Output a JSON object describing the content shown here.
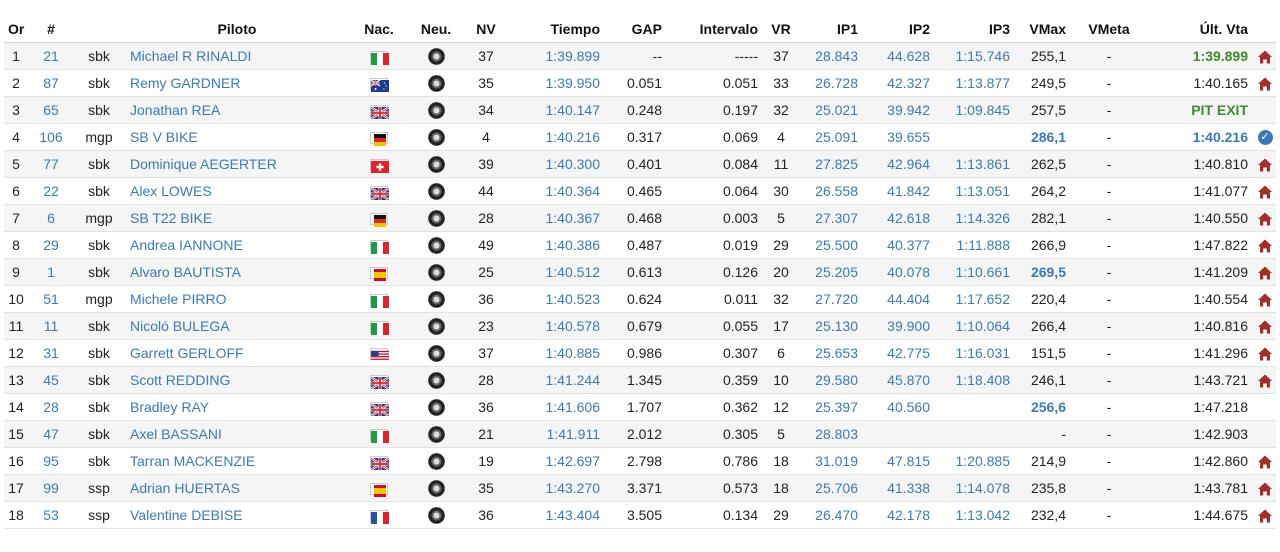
{
  "headers": {
    "or": "Or",
    "num": "#",
    "piloto": "Piloto",
    "nac": "Nac.",
    "neu": "Neu.",
    "nv": "NV",
    "tiempo": "Tiempo",
    "gap": "GAP",
    "intervalo": "Intervalo",
    "vr": "VR",
    "ip1": "IP1",
    "ip2": "IP2",
    "ip3": "IP3",
    "vmax": "VMax",
    "vmeta": "VMeta",
    "ultvta": "Últ. Vta"
  },
  "rows": [
    {
      "or": "1",
      "num": "21",
      "cat": "sbk",
      "piloto": "Michael R RINALDI",
      "flag": "ita",
      "nv": "37",
      "tiempo": "1:39.899",
      "gap": "--",
      "intervalo": "-----",
      "vr": "37",
      "ip1": "28.843",
      "ip2": "44.628",
      "ip3": "1:15.746",
      "vmax": "255,1",
      "vmeta": "-",
      "ultvta": "1:39.899",
      "ultvta_style": "green",
      "vmax_style": "",
      "icon": "home"
    },
    {
      "or": "2",
      "num": "87",
      "cat": "sbk",
      "piloto": "Remy GARDNER",
      "flag": "aus",
      "nv": "35",
      "tiempo": "1:39.950",
      "gap": "0.051",
      "intervalo": "0.051",
      "vr": "33",
      "ip1": "26.728",
      "ip2": "42.327",
      "ip3": "1:13.877",
      "vmax": "249,5",
      "vmeta": "-",
      "ultvta": "1:40.165",
      "ultvta_style": "",
      "vmax_style": "",
      "icon": "home"
    },
    {
      "or": "3",
      "num": "65",
      "cat": "sbk",
      "piloto": "Jonathan REA",
      "flag": "gbr",
      "nv": "34",
      "tiempo": "1:40.147",
      "gap": "0.248",
      "intervalo": "0.197",
      "vr": "32",
      "ip1": "25.021",
      "ip2": "39.942",
      "ip3": "1:09.845",
      "vmax": "257,5",
      "vmeta": "-",
      "ultvta": "PIT EXIT",
      "ultvta_style": "pit",
      "vmax_style": "",
      "icon": ""
    },
    {
      "or": "4",
      "num": "106",
      "cat": "mgp",
      "piloto": "SB V BIKE",
      "flag": "ger",
      "nv": "4",
      "tiempo": "1:40.216",
      "gap": "0.317",
      "intervalo": "0.069",
      "vr": "4",
      "ip1": "25.091",
      "ip2": "39.655",
      "ip3": "",
      "vmax": "286,1",
      "vmeta": "-",
      "ultvta": "1:40.216",
      "ultvta_style": "bluebold",
      "vmax_style": "bluebold",
      "icon": "check"
    },
    {
      "or": "5",
      "num": "77",
      "cat": "sbk",
      "piloto": "Dominique AEGERTER",
      "flag": "sui",
      "nv": "39",
      "tiempo": "1:40.300",
      "gap": "0.401",
      "intervalo": "0.084",
      "vr": "11",
      "ip1": "27.825",
      "ip2": "42.964",
      "ip3": "1:13.861",
      "vmax": "262,5",
      "vmeta": "-",
      "ultvta": "1:40.810",
      "ultvta_style": "",
      "vmax_style": "",
      "icon": "home"
    },
    {
      "or": "6",
      "num": "22",
      "cat": "sbk",
      "piloto": "Alex LOWES",
      "flag": "gbr",
      "nv": "44",
      "tiempo": "1:40.364",
      "gap": "0.465",
      "intervalo": "0.064",
      "vr": "30",
      "ip1": "26.558",
      "ip2": "41.842",
      "ip3": "1:13.051",
      "vmax": "264,2",
      "vmeta": "-",
      "ultvta": "1:41.077",
      "ultvta_style": "",
      "vmax_style": "",
      "icon": "home"
    },
    {
      "or": "7",
      "num": "6",
      "cat": "mgp",
      "piloto": "SB T22 BIKE",
      "flag": "ger",
      "nv": "28",
      "tiempo": "1:40.367",
      "gap": "0.468",
      "intervalo": "0.003",
      "vr": "5",
      "ip1": "27.307",
      "ip2": "42.618",
      "ip3": "1:14.326",
      "vmax": "282,1",
      "vmeta": "-",
      "ultvta": "1:40.550",
      "ultvta_style": "",
      "vmax_style": "",
      "icon": "home"
    },
    {
      "or": "8",
      "num": "29",
      "cat": "sbk",
      "piloto": "Andrea IANNONE",
      "flag": "ita",
      "nv": "49",
      "tiempo": "1:40.386",
      "gap": "0.487",
      "intervalo": "0.019",
      "vr": "29",
      "ip1": "25.500",
      "ip2": "40.377",
      "ip3": "1:11.888",
      "vmax": "266,9",
      "vmeta": "-",
      "ultvta": "1:47.822",
      "ultvta_style": "",
      "vmax_style": "",
      "icon": "home"
    },
    {
      "or": "9",
      "num": "1",
      "cat": "sbk",
      "piloto": "Alvaro BAUTISTA",
      "flag": "esp",
      "nv": "25",
      "tiempo": "1:40.512",
      "gap": "0.613",
      "intervalo": "0.126",
      "vr": "20",
      "ip1": "25.205",
      "ip2": "40.078",
      "ip3": "1:10.661",
      "vmax": "269,5",
      "vmeta": "-",
      "ultvta": "1:41.209",
      "ultvta_style": "",
      "vmax_style": "bluebold",
      "icon": "home"
    },
    {
      "or": "10",
      "num": "51",
      "cat": "mgp",
      "piloto": "Michele PIRRO",
      "flag": "ita",
      "nv": "36",
      "tiempo": "1:40.523",
      "gap": "0.624",
      "intervalo": "0.011",
      "vr": "32",
      "ip1": "27.720",
      "ip2": "44.404",
      "ip3": "1:17.652",
      "vmax": "220,4",
      "vmeta": "-",
      "ultvta": "1:40.554",
      "ultvta_style": "",
      "vmax_style": "",
      "icon": "home"
    },
    {
      "or": "11",
      "num": "11",
      "cat": "sbk",
      "piloto": "Nicoló BULEGA",
      "flag": "ita",
      "nv": "23",
      "tiempo": "1:40.578",
      "gap": "0.679",
      "intervalo": "0.055",
      "vr": "17",
      "ip1": "25.130",
      "ip2": "39.900",
      "ip3": "1:10.064",
      "vmax": "266,4",
      "vmeta": "-",
      "ultvta": "1:40.816",
      "ultvta_style": "",
      "vmax_style": "",
      "icon": "home"
    },
    {
      "or": "12",
      "num": "31",
      "cat": "sbk",
      "piloto": "Garrett GERLOFF",
      "flag": "usa",
      "nv": "37",
      "tiempo": "1:40.885",
      "gap": "0.986",
      "intervalo": "0.307",
      "vr": "6",
      "ip1": "25.653",
      "ip2": "42.775",
      "ip3": "1:16.031",
      "vmax": "151,5",
      "vmeta": "-",
      "ultvta": "1:41.296",
      "ultvta_style": "",
      "vmax_style": "",
      "icon": "home"
    },
    {
      "or": "13",
      "num": "45",
      "cat": "sbk",
      "piloto": "Scott REDDING",
      "flag": "gbr",
      "nv": "28",
      "tiempo": "1:41.244",
      "gap": "1.345",
      "intervalo": "0.359",
      "vr": "10",
      "ip1": "29.580",
      "ip2": "45.870",
      "ip3": "1:18.408",
      "vmax": "246,1",
      "vmeta": "-",
      "ultvta": "1:43.721",
      "ultvta_style": "",
      "vmax_style": "",
      "icon": "home"
    },
    {
      "or": "14",
      "num": "28",
      "cat": "sbk",
      "piloto": "Bradley RAY",
      "flag": "gbr",
      "nv": "36",
      "tiempo": "1:41.606",
      "gap": "1.707",
      "intervalo": "0.362",
      "vr": "12",
      "ip1": "25.397",
      "ip2": "40.560",
      "ip3": "",
      "vmax": "256,6",
      "vmeta": "-",
      "ultvta": "1:47.218",
      "ultvta_style": "",
      "vmax_style": "bluebold",
      "icon": ""
    },
    {
      "or": "15",
      "num": "47",
      "cat": "sbk",
      "piloto": "Axel BASSANI",
      "flag": "ita",
      "nv": "21",
      "tiempo": "1:41.911",
      "gap": "2.012",
      "intervalo": "0.305",
      "vr": "5",
      "ip1": "28.803",
      "ip2": "",
      "ip3": "",
      "vmax": "-",
      "vmeta": "-",
      "ultvta": "1:42.903",
      "ultvta_style": "",
      "vmax_style": "",
      "icon": ""
    },
    {
      "or": "16",
      "num": "95",
      "cat": "sbk",
      "piloto": "Tarran MACKENZIE",
      "flag": "gbr",
      "nv": "19",
      "tiempo": "1:42.697",
      "gap": "2.798",
      "intervalo": "0.786",
      "vr": "18",
      "ip1": "31.019",
      "ip2": "47.815",
      "ip3": "1:20.885",
      "vmax": "214,9",
      "vmeta": "-",
      "ultvta": "1:42.860",
      "ultvta_style": "",
      "vmax_style": "",
      "icon": "home"
    },
    {
      "or": "17",
      "num": "99",
      "cat": "ssp",
      "piloto": "Adrian HUERTAS",
      "flag": "esp",
      "nv": "35",
      "tiempo": "1:43.270",
      "gap": "3.371",
      "intervalo": "0.573",
      "vr": "18",
      "ip1": "25.706",
      "ip2": "41.338",
      "ip3": "1:14.078",
      "vmax": "235,8",
      "vmeta": "-",
      "ultvta": "1:43.781",
      "ultvta_style": "",
      "vmax_style": "",
      "icon": "home"
    },
    {
      "or": "18",
      "num": "53",
      "cat": "ssp",
      "piloto": "Valentine DEBISE",
      "flag": "fra",
      "nv": "36",
      "tiempo": "1:43.404",
      "gap": "3.505",
      "intervalo": "0.134",
      "vr": "29",
      "ip1": "26.470",
      "ip2": "42.178",
      "ip3": "1:13.042",
      "vmax": "232,4",
      "vmeta": "-",
      "ultvta": "1:44.675",
      "ultvta_style": "",
      "vmax_style": "",
      "icon": "home"
    }
  ],
  "colors": {
    "link": "#3a7ab8",
    "green": "#3d8b2a",
    "home_icon": "#a0302a"
  }
}
